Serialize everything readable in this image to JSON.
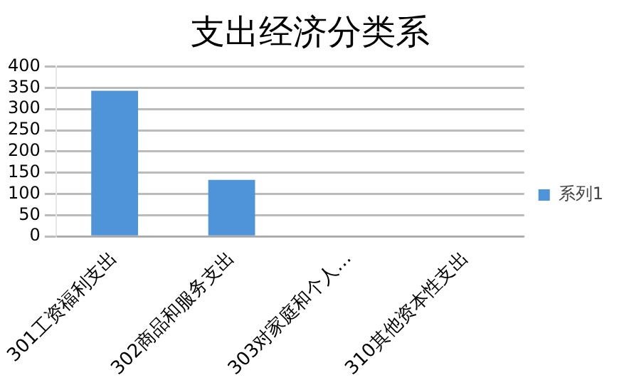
{
  "chart_data": {
    "type": "bar",
    "title": "支出经济分类系",
    "categories": [
      "301工资福利支出",
      "302商品和服务支出",
      "303对家庭和个人…",
      "310其他资本性支出"
    ],
    "series": [
      {
        "name": "系列1",
        "color": "#4f94d9",
        "values": [
          343,
          133,
          0,
          0
        ]
      }
    ],
    "ylim": [
      0,
      400
    ],
    "yticks": [
      0,
      50,
      100,
      150,
      200,
      250,
      300,
      350,
      400
    ],
    "grid": "y",
    "legend": "right"
  }
}
